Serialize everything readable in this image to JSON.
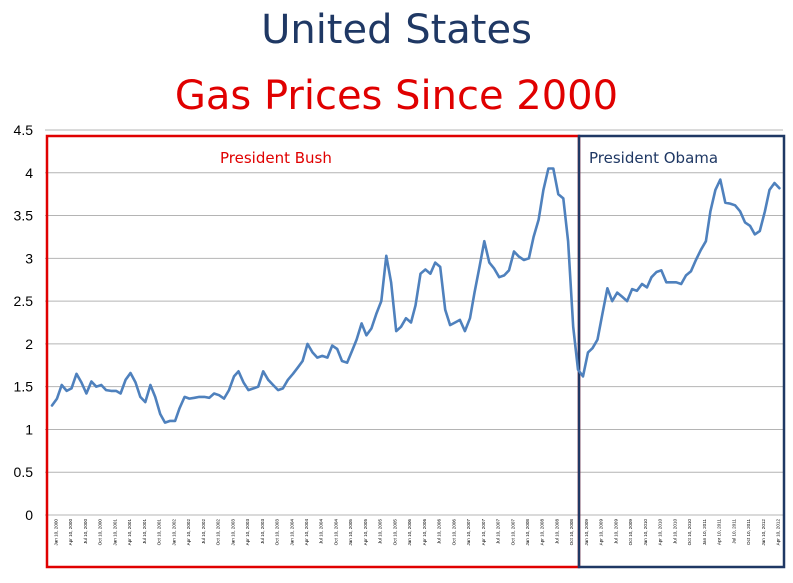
{
  "title": "United States",
  "subtitle": "Gas Prices Since 2000",
  "chart_data": {
    "type": "line",
    "ylim": [
      0,
      4.5
    ],
    "yticks": [
      "0",
      "0.5",
      "1",
      "1.5",
      "2",
      "2.5",
      "3",
      "3.5",
      "4",
      "4.5"
    ],
    "grid": "horizontal",
    "line_color": "#4f81bd",
    "x_tick_labels": [
      "Jan 10, 2000",
      "Apr 10, 2000",
      "Jul 10, 2000",
      "Oct 10, 2000",
      "Jan 10, 2001",
      "Apr 10, 2001",
      "Jul 10, 2001",
      "Oct 10, 2001",
      "Jan 10, 2002",
      "Apr 10, 2002",
      "Jul 10, 2002",
      "Oct 10, 2002",
      "Jan 10, 2003",
      "Apr 10, 2003",
      "Jul 10, 2003",
      "Oct 10, 2003",
      "Jan 10, 2004",
      "Apr 10, 2004",
      "Jul 10, 2004",
      "Oct 10, 2004",
      "Jan 10, 2005",
      "Apr 10, 2005",
      "Jul 10, 2005",
      "Oct 10, 2005",
      "Jan 10, 2006",
      "Apr 10, 2006",
      "Jul 10, 2006",
      "Oct 10, 2006",
      "Jan 10, 2007",
      "Apr 10, 2007",
      "Jul 10, 2007",
      "Oct 10, 2007",
      "Jan 10, 2008",
      "Apr 10, 2008",
      "Jul 10, 2008",
      "Oct 10, 2008",
      "Jan 10, 2009",
      "Apr 10, 2009",
      "Jul 10, 2009",
      "Oct 10, 2009",
      "Jan 10, 2010",
      "Apr 10, 2010",
      "Jul 10, 2010",
      "Oct 10, 2010",
      "Jan 10, 2011",
      "Apr 10, 2011",
      "Jul 10, 2011",
      "Oct 10, 2011",
      "Jan 10, 2012",
      "Apr 10, 2012"
    ],
    "series": [
      {
        "x": [
          "2000-01-10",
          "2000-02-10",
          "2000-03-10",
          "2000-04-10",
          "2000-05-10",
          "2000-06-10",
          "2000-07-10",
          "2000-08-10",
          "2000-09-10",
          "2000-10-10",
          "2000-11-10",
          "2000-12-10",
          "2001-01-10",
          "2001-02-10",
          "2001-03-10",
          "2001-04-10",
          "2001-05-10",
          "2001-06-10",
          "2001-07-10",
          "2001-08-10",
          "2001-09-10",
          "2001-10-10",
          "2001-11-10",
          "2001-12-10",
          "2002-01-10",
          "2002-02-10",
          "2002-03-10",
          "2002-04-10",
          "2002-05-10",
          "2002-06-10",
          "2002-07-10",
          "2002-08-10",
          "2002-09-10",
          "2002-10-10",
          "2002-11-10",
          "2002-12-10",
          "2003-01-10",
          "2003-02-10",
          "2003-03-10",
          "2003-04-10",
          "2003-05-10",
          "2003-06-10",
          "2003-07-10",
          "2003-08-10",
          "2003-09-10",
          "2003-10-10",
          "2003-11-10",
          "2003-12-10",
          "2004-01-10",
          "2004-02-10",
          "2004-03-10",
          "2004-04-10",
          "2004-05-10",
          "2004-06-10",
          "2004-07-10",
          "2004-08-10",
          "2004-09-10",
          "2004-10-10",
          "2004-11-10",
          "2004-12-10",
          "2005-01-10",
          "2005-02-10",
          "2005-03-10",
          "2005-04-10",
          "2005-05-10",
          "2005-06-10",
          "2005-07-10",
          "2005-08-10",
          "2005-09-10",
          "2005-10-10",
          "2005-11-10",
          "2005-12-10",
          "2006-01-10",
          "2006-02-10",
          "2006-03-10",
          "2006-04-10",
          "2006-05-10",
          "2006-06-10",
          "2006-07-10",
          "2006-08-10",
          "2006-09-10",
          "2006-10-10",
          "2006-11-10",
          "2006-12-10",
          "2007-01-10",
          "2007-02-10",
          "2007-03-10",
          "2007-04-10",
          "2007-05-10",
          "2007-06-10",
          "2007-07-10",
          "2007-08-10",
          "2007-09-10",
          "2007-10-10",
          "2007-11-10",
          "2007-12-10",
          "2008-01-10",
          "2008-02-10",
          "2008-03-10",
          "2008-04-10",
          "2008-05-10",
          "2008-06-10",
          "2008-07-10",
          "2008-08-10",
          "2008-09-10",
          "2008-10-10",
          "2008-11-10",
          "2008-12-10",
          "2009-01-10",
          "2009-02-10",
          "2009-03-10",
          "2009-04-10",
          "2009-05-10",
          "2009-06-10",
          "2009-07-10",
          "2009-08-10",
          "2009-09-10",
          "2009-10-10",
          "2009-11-10",
          "2009-12-10",
          "2010-01-10",
          "2010-02-10",
          "2010-03-10",
          "2010-04-10",
          "2010-05-10",
          "2010-06-10",
          "2010-07-10",
          "2010-08-10",
          "2010-09-10",
          "2010-10-10",
          "2010-11-10",
          "2010-12-10",
          "2011-01-10",
          "2011-02-10",
          "2011-03-10",
          "2011-04-10",
          "2011-05-10",
          "2011-06-10",
          "2011-07-10",
          "2011-08-10",
          "2011-09-10",
          "2011-10-10",
          "2011-11-10",
          "2011-12-10",
          "2012-01-10",
          "2012-02-10",
          "2012-03-10",
          "2012-04-10",
          "2012-05-10"
        ],
        "values": [
          1.28,
          1.36,
          1.52,
          1.45,
          1.48,
          1.65,
          1.55,
          1.42,
          1.56,
          1.5,
          1.52,
          1.46,
          1.45,
          1.45,
          1.42,
          1.58,
          1.66,
          1.55,
          1.38,
          1.32,
          1.52,
          1.38,
          1.18,
          1.08,
          1.1,
          1.1,
          1.25,
          1.38,
          1.36,
          1.37,
          1.38,
          1.38,
          1.37,
          1.42,
          1.4,
          1.36,
          1.46,
          1.62,
          1.68,
          1.55,
          1.46,
          1.48,
          1.5,
          1.68,
          1.58,
          1.52,
          1.46,
          1.48,
          1.58,
          1.65,
          1.72,
          1.8,
          2.0,
          1.9,
          1.84,
          1.86,
          1.84,
          1.98,
          1.94,
          1.8,
          1.78,
          1.92,
          2.05,
          2.24,
          2.1,
          2.18,
          2.35,
          2.5,
          3.03,
          2.72,
          2.15,
          2.2,
          2.3,
          2.25,
          2.45,
          2.82,
          2.87,
          2.82,
          2.95,
          2.9,
          2.4,
          2.22,
          2.25,
          2.28,
          2.15,
          2.3,
          2.6,
          2.9,
          3.2,
          2.95,
          2.88,
          2.78,
          2.8,
          2.86,
          3.08,
          3.02,
          2.98,
          3.0,
          3.25,
          3.45,
          3.8,
          4.05,
          4.05,
          3.75,
          3.7,
          3.2,
          2.2,
          1.7,
          1.62,
          1.9,
          1.95,
          2.05,
          2.35,
          2.65,
          2.5,
          2.6,
          2.55,
          2.5,
          2.64,
          2.62,
          2.7,
          2.66,
          2.78,
          2.84,
          2.86,
          2.72,
          2.72,
          2.72,
          2.7,
          2.8,
          2.85,
          2.98,
          3.1,
          3.2,
          3.55,
          3.8,
          3.92,
          3.65,
          3.64,
          3.62,
          3.55,
          3.42,
          3.38,
          3.28,
          3.32,
          3.55,
          3.8,
          3.88,
          3.82
        ]
      }
    ],
    "regions": [
      {
        "label": "President Bush",
        "from": "2000-01-10",
        "to": "2009-01-20",
        "color": "#e00000"
      },
      {
        "label": "President Obama",
        "from": "2009-01-20",
        "to": "2012-05-20",
        "color": "#1f3864"
      }
    ]
  }
}
